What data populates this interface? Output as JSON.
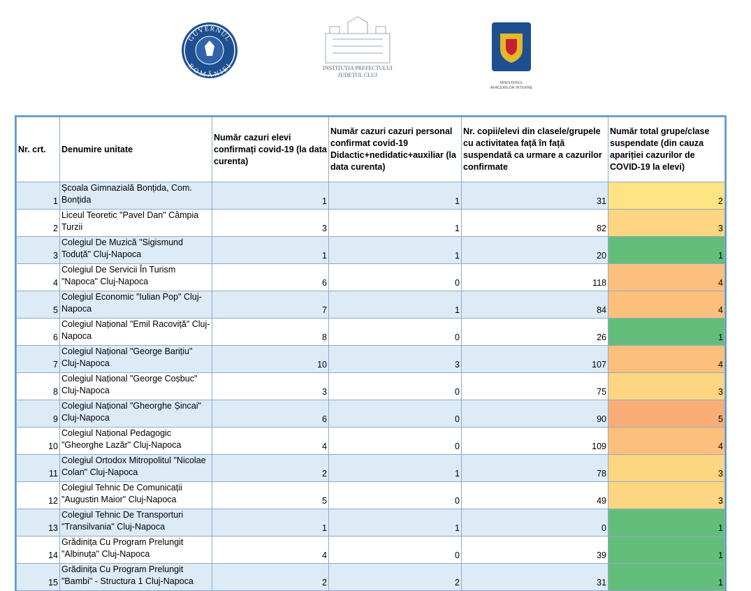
{
  "logos": {
    "gov_top": "GUVERNUL",
    "gov_bottom": "ROMÂNIEI",
    "prefect_line1": "INSTITUȚIA PREFECTULUI",
    "prefect_line2": "JUDEȚUL CLUJ",
    "mai_line1": "MINISTERUL",
    "mai_line2": "AFACERILOR INTERNE"
  },
  "table": {
    "headers": [
      "Nr. crt.",
      "Denumire unitate",
      "Număr cazuri elevi confirmați covid-19 (la data curenta)",
      "Număr cazuri cazuri personal confirmat covid-19 Didactic+nedidatic+auxiliar (la data curenta)",
      "Nr. copii/elevi din clasele/grupele cu activitatea față în față suspendată ca urmare a cazurilor confirmate",
      "Număr total grupe/clase suspendate (din cauza apariției cazurilor de COVID-19 la elevi)"
    ],
    "scale_colors": [
      "#63be7b",
      "#ffe484",
      "#fed580",
      "#fdc07c",
      "#fbad78"
    ],
    "rows": [
      [
        1,
        "Școala Gimnazială Bonțida, Com. Bonțida",
        1,
        1,
        31,
        2
      ],
      [
        2,
        "Liceul Teoretic \"Pavel Dan\" Câmpia Turzii",
        3,
        1,
        82,
        3
      ],
      [
        3,
        "Colegiul De Muzică \"Sigismund Toduță\" Cluj-Napoca",
        1,
        1,
        20,
        1
      ],
      [
        4,
        "Colegiul De Servicii În Turism \"Napoca\" Cluj-Napoca",
        6,
        0,
        118,
        4
      ],
      [
        5,
        "Colegiul Economic \"Iulian Pop\" Cluj-Napoca",
        7,
        1,
        84,
        4
      ],
      [
        6,
        "Colegiul Național \"Emil Racoviță\" Cluj-Napoca",
        8,
        0,
        26,
        1
      ],
      [
        7,
        "Colegiul Național \"George Barițiu\" Cluj-Napoca",
        10,
        3,
        107,
        4
      ],
      [
        8,
        "Colegiul Național \"George Coșbuc\" Cluj-Napoca",
        3,
        0,
        75,
        3
      ],
      [
        9,
        "Colegiul Național \"Gheorghe Șincai\" Cluj-Napoca",
        6,
        0,
        90,
        5
      ],
      [
        10,
        "Colegiul Național Pedagogic \"Gheorghe Lazăr\" Cluj-Napoca",
        4,
        0,
        109,
        4
      ],
      [
        11,
        "Colegiul Ortodox Mitropolitul \"Nicolae Colan\" Cluj-Napoca",
        2,
        1,
        78,
        3
      ],
      [
        12,
        "Colegiul Tehnic De Comunicații \"Augustin Maior\" Cluj-Napoca",
        5,
        0,
        49,
        3
      ],
      [
        13,
        "Colegiul Tehnic De Transporturi \"Transilvania\" Cluj-Napoca",
        1,
        1,
        0,
        1
      ],
      [
        14,
        "Grădinița Cu Program Prelungit \"Albinuța\" Cluj-Napoca",
        4,
        0,
        39,
        1
      ],
      [
        15,
        "Grădinița Cu Program Prelungit \"Bambi\" - Structura 1 Cluj-Napoca",
        2,
        2,
        31,
        1
      ]
    ]
  }
}
